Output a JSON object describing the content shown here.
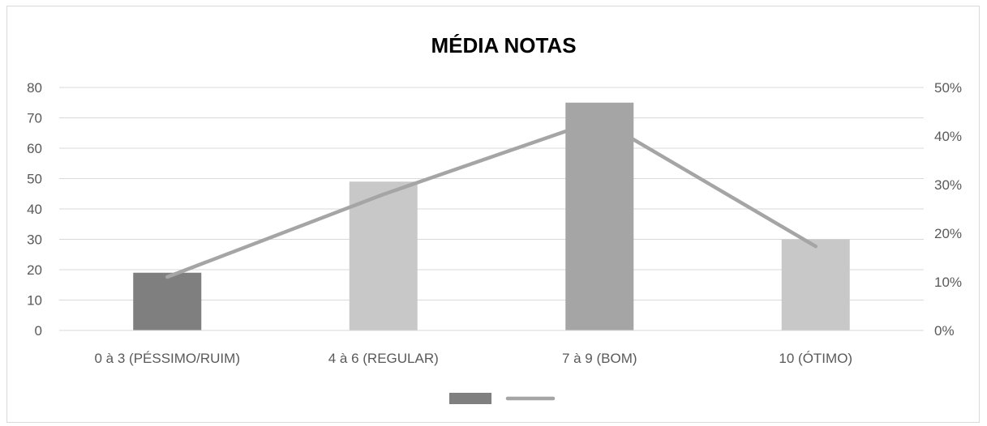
{
  "chart_data": {
    "type": "bar+line",
    "title": "MÉDIA NOTAS",
    "categories": [
      "0 à 3 (PÉSSIMO/RUIM)",
      "4 à 6 (REGULAR)",
      "7 à 9 (BOM)",
      "10 (ÓTIMO)"
    ],
    "bar_series": {
      "values": [
        19,
        49,
        75,
        30
      ],
      "colors": [
        "#7f7f7f",
        "#c8c8c8",
        "#a5a5a5",
        "#c8c8c8"
      ],
      "axis": "left"
    },
    "line_series": {
      "values": [
        0.11,
        0.28,
        0.434,
        0.173
      ],
      "color": "#a5a5a5",
      "axis": "right"
    },
    "y_left": {
      "range": [
        0,
        80
      ],
      "ticks": [
        0,
        10,
        20,
        30,
        40,
        50,
        60,
        70,
        80
      ],
      "tick_labels": [
        "0",
        "10",
        "20",
        "30",
        "40",
        "50",
        "60",
        "70",
        "80"
      ]
    },
    "y_right": {
      "range": [
        0,
        0.5
      ],
      "ticks": [
        0,
        0.1,
        0.2,
        0.3,
        0.4,
        0.5
      ],
      "tick_labels": [
        "0%",
        "10%",
        "20%",
        "30%",
        "40%",
        "50%"
      ]
    },
    "gridlines": true,
    "legend": {
      "placement": "bottom",
      "entries": [
        {
          "symbol": "bar",
          "color": "#7f7f7f"
        },
        {
          "symbol": "line",
          "color": "#a5a5a5"
        }
      ]
    }
  }
}
